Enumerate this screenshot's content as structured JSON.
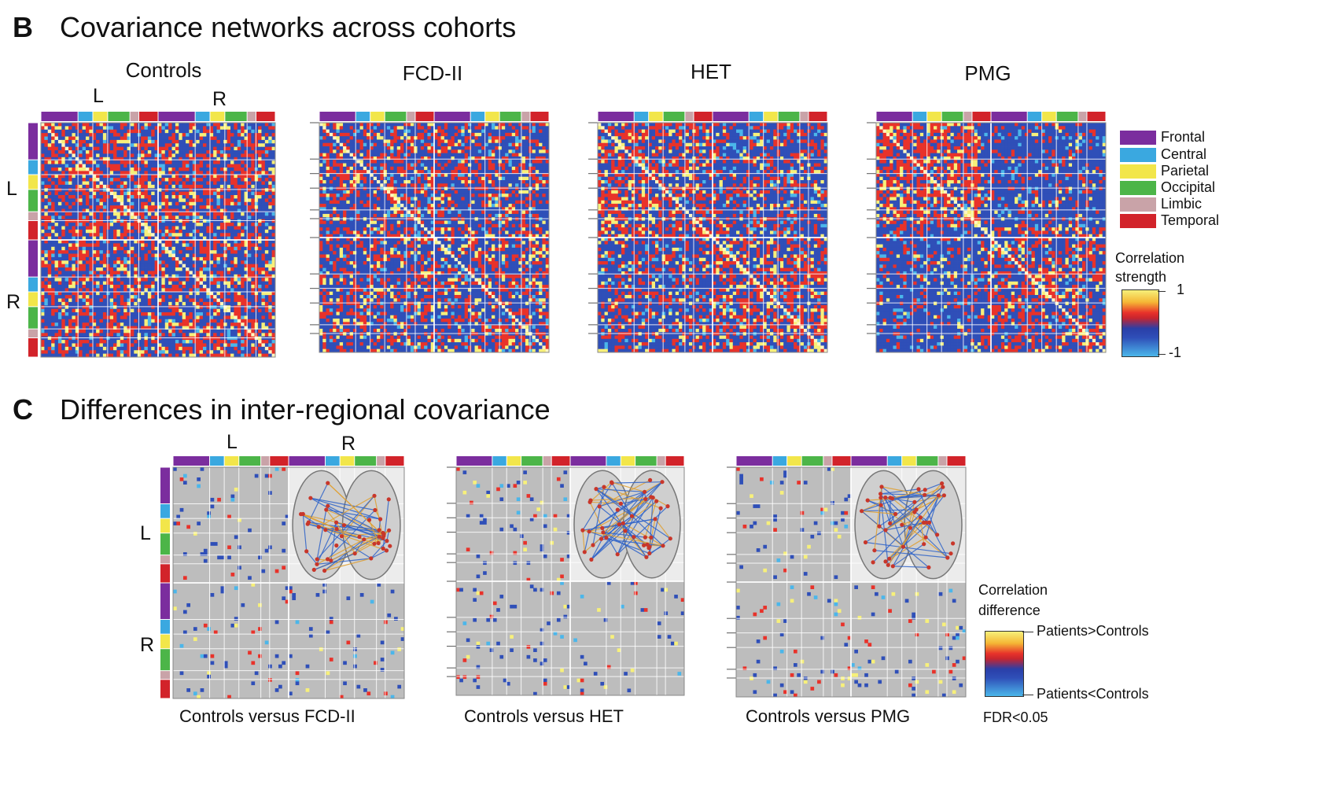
{
  "panel_b": {
    "letter": "B",
    "title": "Covariance networks across cohorts",
    "cohorts": [
      "Controls",
      "FCD-II",
      "HET",
      "PMG"
    ],
    "hemi_top": [
      "L",
      "R"
    ],
    "hemi_side": [
      "L",
      "R"
    ]
  },
  "lobe_legend": {
    "items": [
      {
        "label": "Frontal",
        "color": "#7b2d9e"
      },
      {
        "label": "Central",
        "color": "#3aa8e0"
      },
      {
        "label": "Parietal",
        "color": "#f2e64a"
      },
      {
        "label": "Occipital",
        "color": "#4cb548"
      },
      {
        "label": "Limbic",
        "color": "#c9a3a8"
      },
      {
        "label": "Temporal",
        "color": "#d2232a"
      }
    ]
  },
  "correlation_legend": {
    "title_line1": "Correlation",
    "title_line2": "strength",
    "max_label": "1",
    "min_label": "-1"
  },
  "panel_c": {
    "letter": "C",
    "title": "Differences in inter-regional covariance",
    "hemi_top": [
      "L",
      "R"
    ],
    "hemi_side": [
      "L",
      "R"
    ],
    "comparisons": [
      {
        "prefix": "Controls versus",
        "name": "FCD-II"
      },
      {
        "prefix": "Controls versus",
        "name": "HET"
      },
      {
        "prefix": "Controls versus",
        "name": "PMG"
      }
    ]
  },
  "difference_legend": {
    "title_line1": "Correlation",
    "title_line2": "difference",
    "top_label": "Patients>Controls",
    "bottom_label": "Patients<Controls",
    "footnote": "FDR<0.05"
  },
  "colors": {
    "strong_pos": "#f7f07a",
    "pos": "#e8322a",
    "neg": "#2f4fb8",
    "strong_neg": "#4bb6ea",
    "gray_bg": "#bdbdbd",
    "lobe_sequence": [
      "#7b2d9e",
      "#3aa8e0",
      "#f2e64a",
      "#4cb548",
      "#c9a3a8",
      "#d2232a"
    ]
  }
}
